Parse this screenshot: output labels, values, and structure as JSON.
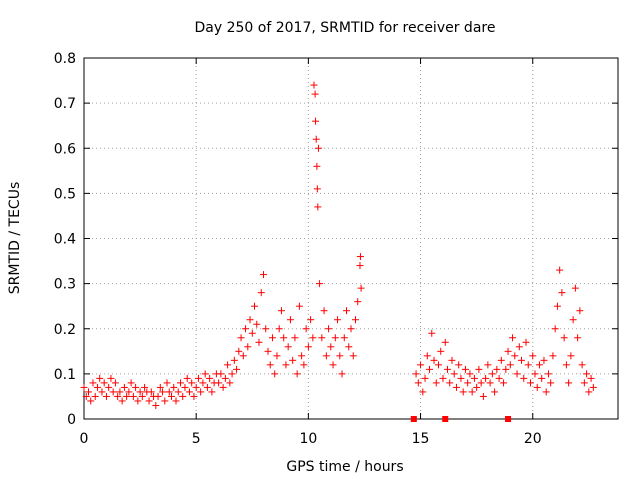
{
  "chart_data": {
    "type": "scatter",
    "title": "Day 250 of 2017, SRMTID for receiver dare",
    "xlabel": "GPS time / hours",
    "ylabel": "SRMTID / TECUs",
    "xlim": [
      0,
      23.8
    ],
    "ylim": [
      0,
      0.8
    ],
    "x_ticks": [
      "0",
      "5",
      "10",
      "15",
      "20"
    ],
    "y_ticks": [
      "0",
      "0.1",
      "0.2",
      "0.3",
      "0.4",
      "0.5",
      "0.6",
      "0.7",
      "0.8"
    ],
    "grid": true,
    "marker": "+",
    "color": "#ff0000",
    "no_data_markers_x": [
      14.7,
      16.1,
      18.9
    ],
    "series": [
      {
        "name": "SRMTID",
        "points": [
          [
            0.0,
            0.07
          ],
          [
            0.1,
            0.05
          ],
          [
            0.2,
            0.06
          ],
          [
            0.3,
            0.04
          ],
          [
            0.4,
            0.08
          ],
          [
            0.5,
            0.05
          ],
          [
            0.6,
            0.07
          ],
          [
            0.7,
            0.09
          ],
          [
            0.8,
            0.06
          ],
          [
            0.9,
            0.08
          ],
          [
            1.0,
            0.05
          ],
          [
            1.1,
            0.07
          ],
          [
            1.2,
            0.09
          ],
          [
            1.3,
            0.06
          ],
          [
            1.4,
            0.08
          ],
          [
            1.5,
            0.05
          ],
          [
            1.6,
            0.06
          ],
          [
            1.7,
            0.04
          ],
          [
            1.8,
            0.07
          ],
          [
            1.9,
            0.05
          ],
          [
            2.0,
            0.06
          ],
          [
            2.1,
            0.08
          ],
          [
            2.2,
            0.05
          ],
          [
            2.3,
            0.07
          ],
          [
            2.4,
            0.04
          ],
          [
            2.5,
            0.06
          ],
          [
            2.6,
            0.05
          ],
          [
            2.7,
            0.07
          ],
          [
            2.8,
            0.06
          ],
          [
            2.9,
            0.04
          ],
          [
            3.0,
            0.06
          ],
          [
            3.1,
            0.05
          ],
          [
            3.2,
            0.03
          ],
          [
            3.3,
            0.05
          ],
          [
            3.4,
            0.07
          ],
          [
            3.5,
            0.06
          ],
          [
            3.6,
            0.04
          ],
          [
            3.7,
            0.08
          ],
          [
            3.8,
            0.06
          ],
          [
            3.9,
            0.05
          ],
          [
            4.0,
            0.07
          ],
          [
            4.1,
            0.04
          ],
          [
            4.2,
            0.06
          ],
          [
            4.3,
            0.08
          ],
          [
            4.4,
            0.05
          ],
          [
            4.5,
            0.07
          ],
          [
            4.6,
            0.09
          ],
          [
            4.7,
            0.06
          ],
          [
            4.8,
            0.08
          ],
          [
            4.9,
            0.05
          ],
          [
            5.0,
            0.07
          ],
          [
            5.1,
            0.09
          ],
          [
            5.2,
            0.06
          ],
          [
            5.3,
            0.08
          ],
          [
            5.4,
            0.1
          ],
          [
            5.5,
            0.07
          ],
          [
            5.6,
            0.09
          ],
          [
            5.7,
            0.06
          ],
          [
            5.8,
            0.08
          ],
          [
            5.9,
            0.1
          ],
          [
            6.0,
            0.08
          ],
          [
            6.1,
            0.1
          ],
          [
            6.2,
            0.07
          ],
          [
            6.3,
            0.09
          ],
          [
            6.4,
            0.12
          ],
          [
            6.5,
            0.08
          ],
          [
            6.6,
            0.1
          ],
          [
            6.7,
            0.13
          ],
          [
            6.8,
            0.11
          ],
          [
            6.9,
            0.15
          ],
          [
            7.0,
            0.18
          ],
          [
            7.1,
            0.14
          ],
          [
            7.2,
            0.2
          ],
          [
            7.3,
            0.16
          ],
          [
            7.4,
            0.22
          ],
          [
            7.5,
            0.19
          ],
          [
            7.6,
            0.25
          ],
          [
            7.7,
            0.21
          ],
          [
            7.8,
            0.17
          ],
          [
            7.9,
            0.28
          ],
          [
            8.0,
            0.32
          ],
          [
            8.1,
            0.2
          ],
          [
            8.2,
            0.15
          ],
          [
            8.3,
            0.12
          ],
          [
            8.4,
            0.18
          ],
          [
            8.5,
            0.1
          ],
          [
            8.6,
            0.14
          ],
          [
            8.7,
            0.2
          ],
          [
            8.8,
            0.24
          ],
          [
            8.9,
            0.18
          ],
          [
            9.0,
            0.12
          ],
          [
            9.1,
            0.16
          ],
          [
            9.2,
            0.22
          ],
          [
            9.3,
            0.13
          ],
          [
            9.4,
            0.18
          ],
          [
            9.5,
            0.1
          ],
          [
            9.6,
            0.25
          ],
          [
            9.7,
            0.14
          ],
          [
            9.8,
            0.12
          ],
          [
            9.9,
            0.2
          ],
          [
            10.0,
            0.16
          ],
          [
            10.1,
            0.22
          ],
          [
            10.2,
            0.18
          ],
          [
            10.25,
            0.74
          ],
          [
            10.3,
            0.72
          ],
          [
            10.32,
            0.66
          ],
          [
            10.35,
            0.62
          ],
          [
            10.38,
            0.56
          ],
          [
            10.4,
            0.51
          ],
          [
            10.42,
            0.47
          ],
          [
            10.45,
            0.6
          ],
          [
            10.5,
            0.3
          ],
          [
            10.6,
            0.18
          ],
          [
            10.7,
            0.24
          ],
          [
            10.8,
            0.14
          ],
          [
            10.9,
            0.2
          ],
          [
            11.0,
            0.16
          ],
          [
            11.1,
            0.12
          ],
          [
            11.2,
            0.18
          ],
          [
            11.3,
            0.22
          ],
          [
            11.4,
            0.14
          ],
          [
            11.5,
            0.1
          ],
          [
            11.6,
            0.18
          ],
          [
            11.7,
            0.24
          ],
          [
            11.8,
            0.16
          ],
          [
            11.9,
            0.2
          ],
          [
            12.0,
            0.14
          ],
          [
            12.1,
            0.22
          ],
          [
            12.2,
            0.26
          ],
          [
            12.3,
            0.34
          ],
          [
            12.32,
            0.36
          ],
          [
            12.35,
            0.29
          ],
          [
            14.8,
            0.1
          ],
          [
            14.9,
            0.08
          ],
          [
            15.0,
            0.12
          ],
          [
            15.1,
            0.06
          ],
          [
            15.2,
            0.09
          ],
          [
            15.3,
            0.14
          ],
          [
            15.4,
            0.11
          ],
          [
            15.5,
            0.19
          ],
          [
            15.6,
            0.13
          ],
          [
            15.7,
            0.08
          ],
          [
            15.8,
            0.12
          ],
          [
            15.9,
            0.15
          ],
          [
            16.0,
            0.09
          ],
          [
            16.1,
            0.17
          ],
          [
            16.2,
            0.11
          ],
          [
            16.3,
            0.08
          ],
          [
            16.4,
            0.13
          ],
          [
            16.5,
            0.1
          ],
          [
            16.6,
            0.07
          ],
          [
            16.7,
            0.12
          ],
          [
            16.8,
            0.09
          ],
          [
            16.9,
            0.06
          ],
          [
            17.0,
            0.11
          ],
          [
            17.1,
            0.08
          ],
          [
            17.2,
            0.1
          ],
          [
            17.3,
            0.06
          ],
          [
            17.4,
            0.09
          ],
          [
            17.5,
            0.07
          ],
          [
            17.6,
            0.11
          ],
          [
            17.7,
            0.08
          ],
          [
            17.8,
            0.05
          ],
          [
            17.9,
            0.09
          ],
          [
            18.0,
            0.12
          ],
          [
            18.1,
            0.08
          ],
          [
            18.2,
            0.1
          ],
          [
            18.3,
            0.06
          ],
          [
            18.4,
            0.11
          ],
          [
            18.5,
            0.09
          ],
          [
            18.6,
            0.13
          ],
          [
            18.7,
            0.08
          ],
          [
            18.8,
            0.11
          ],
          [
            18.9,
            0.15
          ],
          [
            19.0,
            0.12
          ],
          [
            19.1,
            0.18
          ],
          [
            19.2,
            0.14
          ],
          [
            19.3,
            0.1
          ],
          [
            19.4,
            0.16
          ],
          [
            19.5,
            0.13
          ],
          [
            19.6,
            0.09
          ],
          [
            19.7,
            0.17
          ],
          [
            19.8,
            0.12
          ],
          [
            19.9,
            0.08
          ],
          [
            20.0,
            0.14
          ],
          [
            20.1,
            0.1
          ],
          [
            20.2,
            0.07
          ],
          [
            20.3,
            0.12
          ],
          [
            20.4,
            0.09
          ],
          [
            20.5,
            0.13
          ],
          [
            20.6,
            0.06
          ],
          [
            20.7,
            0.1
          ],
          [
            20.8,
            0.08
          ],
          [
            20.9,
            0.14
          ],
          [
            21.0,
            0.2
          ],
          [
            21.1,
            0.25
          ],
          [
            21.2,
            0.33
          ],
          [
            21.3,
            0.28
          ],
          [
            21.4,
            0.18
          ],
          [
            21.5,
            0.12
          ],
          [
            21.6,
            0.08
          ],
          [
            21.7,
            0.14
          ],
          [
            21.8,
            0.22
          ],
          [
            21.9,
            0.29
          ],
          [
            22.0,
            0.18
          ],
          [
            22.1,
            0.24
          ],
          [
            22.2,
            0.12
          ],
          [
            22.3,
            0.08
          ],
          [
            22.4,
            0.1
          ],
          [
            22.5,
            0.06
          ],
          [
            22.6,
            0.09
          ],
          [
            22.7,
            0.07
          ]
        ]
      }
    ]
  }
}
